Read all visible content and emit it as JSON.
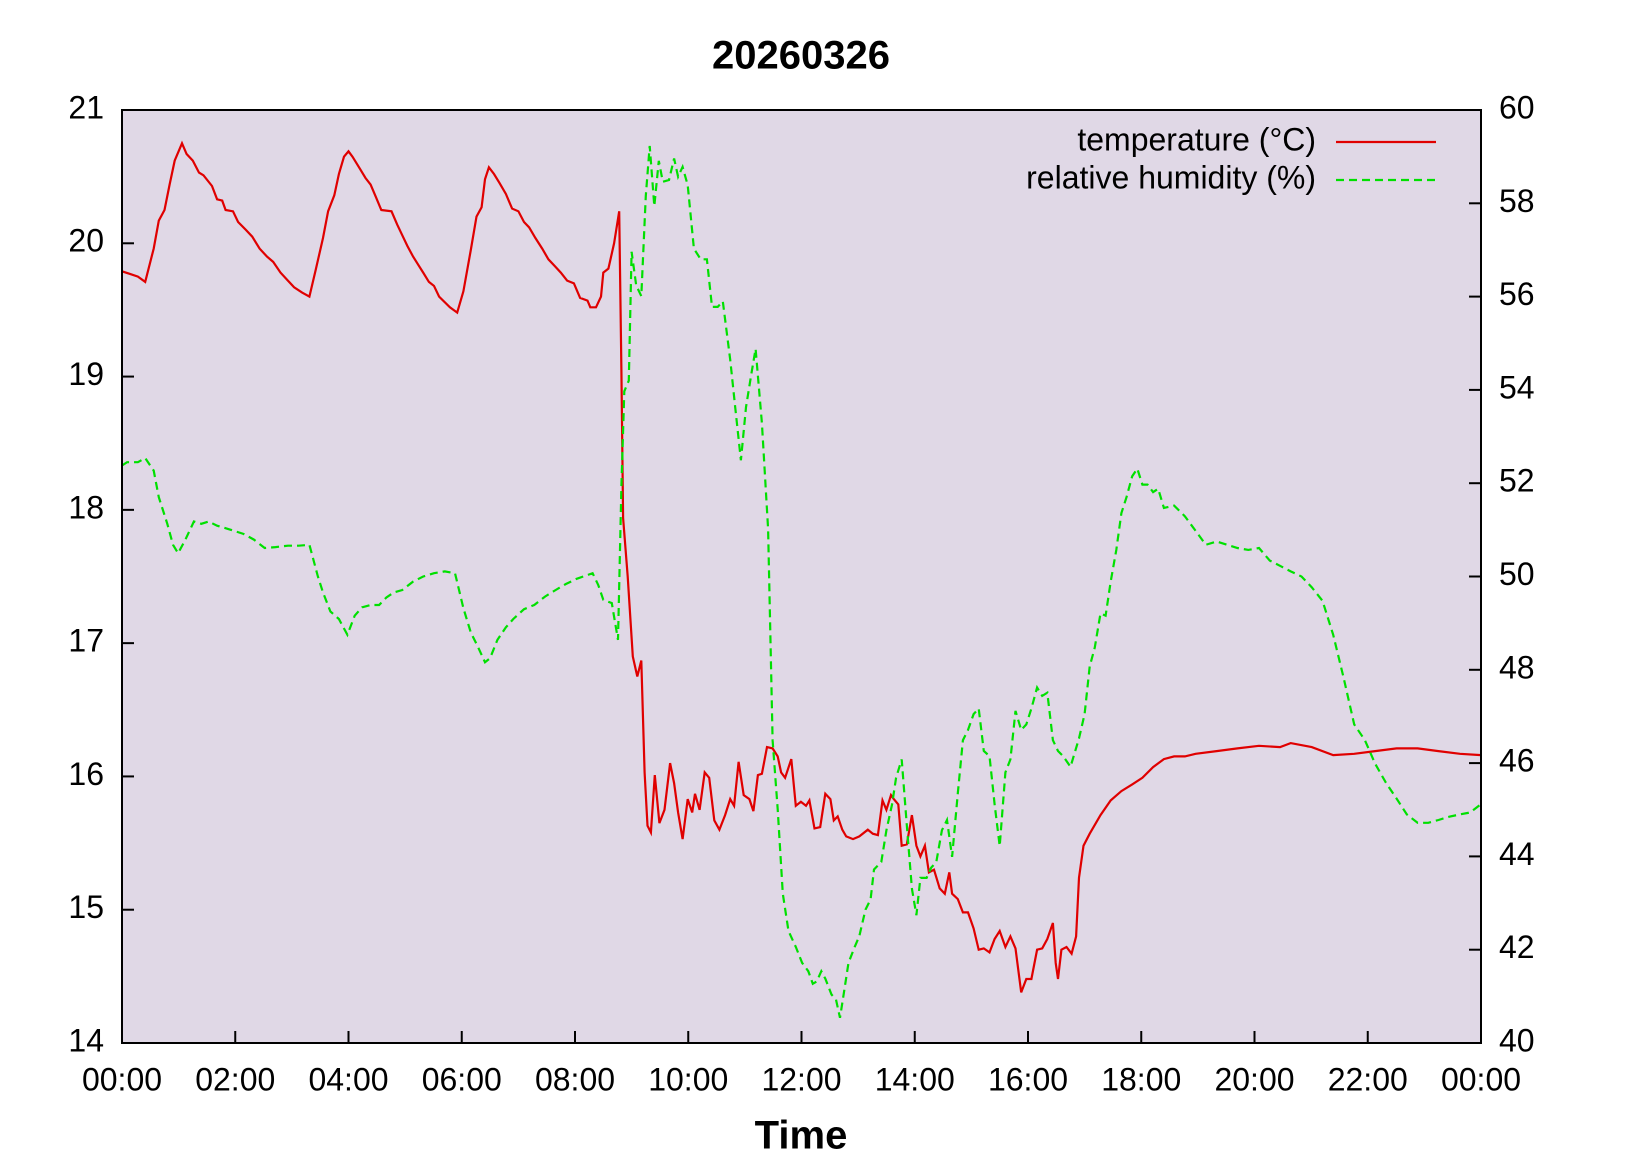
{
  "chart_data": {
    "type": "line",
    "title": "20260326",
    "xlabel": "Time",
    "xlim": [
      0,
      24
    ],
    "xticks": [
      {
        "value": 0,
        "label": "00:00"
      },
      {
        "value": 2,
        "label": "02:00"
      },
      {
        "value": 4,
        "label": "04:00"
      },
      {
        "value": 6,
        "label": "06:00"
      },
      {
        "value": 8,
        "label": "08:00"
      },
      {
        "value": 10,
        "label": "10:00"
      },
      {
        "value": 12,
        "label": "12:00"
      },
      {
        "value": 14,
        "label": "14:00"
      },
      {
        "value": 16,
        "label": "16:00"
      },
      {
        "value": 18,
        "label": "18:00"
      },
      {
        "value": 20,
        "label": "20:00"
      },
      {
        "value": 22,
        "label": "22:00"
      },
      {
        "value": 24,
        "label": "00:00"
      }
    ],
    "ylim": [
      14,
      21
    ],
    "yticks": [
      14,
      15,
      16,
      17,
      18,
      19,
      20,
      21
    ],
    "y2lim": [
      40,
      60
    ],
    "y2ticks": [
      40,
      42,
      44,
      46,
      48,
      50,
      52,
      54,
      56,
      58,
      60
    ],
    "legend": "top-right",
    "background": "#e0d8e6",
    "series": [
      {
        "name": "temperature (°C)",
        "color": "#e00000",
        "style": "solid",
        "x": [
          0,
          0.28,
          0.41,
          0.56,
          0.65,
          0.75,
          0.84,
          0.93,
          1.06,
          1.14,
          1.25,
          1.36,
          1.44,
          1.59,
          1.68,
          1.77,
          1.83,
          1.96,
          2.05,
          2.19,
          2.3,
          2.43,
          2.56,
          2.67,
          2.8,
          2.93,
          3.04,
          3.18,
          3.31,
          3.42,
          3.55,
          3.64,
          3.75,
          3.83,
          3.92,
          4,
          4.07,
          4.2,
          4.3,
          4.39,
          4.48,
          4.58,
          4.76,
          4.86,
          4.95,
          5.04,
          5.14,
          5.23,
          5.32,
          5.42,
          5.51,
          5.6,
          5.79,
          5.92,
          6.03,
          6.16,
          6.26,
          6.35,
          6.41,
          6.48,
          6.57,
          6.67,
          6.78,
          6.89,
          7,
          7.1,
          7.19,
          7.3,
          7.42,
          7.53,
          7.64,
          7.75,
          7.86,
          7.98,
          8.09,
          8.22,
          8.27,
          8.37,
          8.46,
          8.5,
          8.59,
          8.69,
          8.78,
          8.82,
          8.85,
          8.93,
          9.02,
          9.1,
          9.17,
          9.23,
          9.28,
          9.34,
          9.41,
          9.49,
          9.58,
          9.68,
          9.75,
          9.82,
          9.9,
          9.99,
          10.07,
          10.12,
          10.2,
          10.29,
          10.37,
          10.46,
          10.55,
          10.65,
          10.74,
          10.81,
          10.89,
          10.98,
          11.08,
          11.15,
          11.23,
          11.3,
          11.39,
          11.49,
          11.58,
          11.64,
          11.71,
          11.82,
          11.9,
          11.99,
          12.08,
          12.14,
          12.23,
          12.33,
          12.42,
          12.51,
          12.57,
          12.64,
          12.72,
          12.79,
          12.91,
          13.02,
          13.17,
          13.26,
          13.35,
          13.43,
          13.5,
          13.58,
          13.63,
          13.71,
          13.77,
          13.86,
          13.95,
          14.03,
          14.1,
          14.18,
          14.25,
          14.34,
          14.44,
          14.53,
          14.61,
          14.66,
          14.76,
          14.85,
          14.94,
          15.04,
          15.13,
          15.22,
          15.32,
          15.41,
          15.5,
          15.6,
          15.69,
          15.78,
          15.88,
          15.97,
          16.06,
          16.16,
          16.25,
          16.34,
          16.44,
          16.49,
          16.53,
          16.59,
          16.68,
          16.77,
          16.85,
          16.9,
          16.98,
          17.09,
          17.28,
          17.46,
          17.65,
          17.84,
          18.02,
          18.21,
          18.4,
          18.58,
          18.77,
          18.96,
          19.33,
          19.7,
          20.08,
          20.45,
          20.64,
          21.01,
          21.39,
          21.76,
          22.13,
          22.51,
          22.88,
          23.25,
          23.63,
          24
        ],
        "values": [
          19.79,
          19.75,
          19.71,
          19.96,
          20.17,
          20.25,
          20.44,
          20.62,
          20.75,
          20.67,
          20.62,
          20.53,
          20.51,
          20.43,
          20.33,
          20.32,
          20.25,
          20.24,
          20.16,
          20.1,
          20.05,
          19.96,
          19.9,
          19.86,
          19.78,
          19.72,
          19.67,
          19.63,
          19.6,
          19.8,
          20.04,
          20.24,
          20.36,
          20.52,
          20.65,
          20.69,
          20.65,
          20.56,
          20.49,
          20.44,
          20.35,
          20.25,
          20.24,
          20.14,
          20.06,
          19.98,
          19.9,
          19.84,
          19.78,
          19.71,
          19.68,
          19.6,
          19.52,
          19.48,
          19.64,
          19.95,
          20.2,
          20.27,
          20.48,
          20.57,
          20.52,
          20.45,
          20.37,
          20.26,
          20.24,
          20.16,
          20.12,
          20.04,
          19.96,
          19.88,
          19.83,
          19.78,
          19.72,
          19.7,
          19.59,
          19.57,
          19.52,
          19.52,
          19.6,
          19.78,
          19.81,
          20,
          20.24,
          19.05,
          17.94,
          17.5,
          16.9,
          16.75,
          16.87,
          16.03,
          15.63,
          15.58,
          16.01,
          15.65,
          15.75,
          16.1,
          15.95,
          15.73,
          15.53,
          15.83,
          15.73,
          15.87,
          15.75,
          16.03,
          15.99,
          15.67,
          15.6,
          15.71,
          15.83,
          15.78,
          16.11,
          15.86,
          15.83,
          15.74,
          16.01,
          16.02,
          16.22,
          16.21,
          16.15,
          16.03,
          15.99,
          16.13,
          15.78,
          15.81,
          15.78,
          15.82,
          15.61,
          15.62,
          15.87,
          15.83,
          15.67,
          15.7,
          15.6,
          15.55,
          15.53,
          15.55,
          15.6,
          15.57,
          15.56,
          15.82,
          15.75,
          15.86,
          15.83,
          15.79,
          15.48,
          15.49,
          15.71,
          15.48,
          15.4,
          15.48,
          15.28,
          15.3,
          15.16,
          15.12,
          15.28,
          15.12,
          15.08,
          14.98,
          14.98,
          14.86,
          14.7,
          14.71,
          14.68,
          14.78,
          14.84,
          14.72,
          14.8,
          14.71,
          14.38,
          14.48,
          14.48,
          14.7,
          14.71,
          14.78,
          14.9,
          14.6,
          14.48,
          14.7,
          14.72,
          14.67,
          14.8,
          15.24,
          15.48,
          15.57,
          15.71,
          15.82,
          15.89,
          15.94,
          15.99,
          16.07,
          16.13,
          16.15,
          16.15,
          16.17,
          16.19,
          16.21,
          16.23,
          16.22,
          16.25,
          16.22,
          16.16,
          16.17,
          16.19,
          16.21,
          16.21,
          16.19,
          16.17,
          16.16
        ]
      },
      {
        "name": "relative humidity (%)",
        "color": "#00e000",
        "style": "dashed",
        "axis": "y2",
        "x": [
          0,
          0.09,
          0.28,
          0.41,
          0.56,
          0.65,
          0.8,
          0.9,
          0.99,
          1.12,
          1.27,
          1.4,
          1.53,
          1.68,
          1.87,
          2.15,
          2.33,
          2.52,
          2.71,
          2.93,
          3.12,
          3.31,
          3.46,
          3.55,
          3.68,
          3.83,
          3.98,
          4.11,
          4.24,
          4.39,
          4.54,
          4.67,
          4.8,
          4.95,
          5.14,
          5.32,
          5.51,
          5.7,
          5.88,
          6.03,
          6.16,
          6.29,
          6.41,
          6.5,
          6.63,
          6.78,
          6.91,
          7.1,
          7.28,
          7.47,
          7.66,
          7.84,
          8.03,
          8.31,
          8.41,
          8.5,
          8.65,
          8.76,
          8.82,
          8.87,
          8.95,
          9,
          9.08,
          9.17,
          9.25,
          9.32,
          9.4,
          9.48,
          9.55,
          9.66,
          9.75,
          9.82,
          9.9,
          9.99,
          10.1,
          10.22,
          10.33,
          10.42,
          10.52,
          10.61,
          10.74,
          10.83,
          10.93,
          11.02,
          11.11,
          11.19,
          11.3,
          11.41,
          11.49,
          11.58,
          11.67,
          11.77,
          11.9,
          12.01,
          12.12,
          12.2,
          12.27,
          12.35,
          12.42,
          12.53,
          12.61,
          12.68,
          12.76,
          12.83,
          12.94,
          13.02,
          13.13,
          13.22,
          13.28,
          13.41,
          13.5,
          13.6,
          13.67,
          13.77,
          13.86,
          13.95,
          14.03,
          14.1,
          14.21,
          14.29,
          14.38,
          14.48,
          14.57,
          14.66,
          14.76,
          14.85,
          14.94,
          15.04,
          15.13,
          15.22,
          15.32,
          15.41,
          15.5,
          15.6,
          15.69,
          15.78,
          15.88,
          15.97,
          16.06,
          16.16,
          16.25,
          16.34,
          16.44,
          16.53,
          16.62,
          16.75,
          16.9,
          17,
          17.09,
          17.18,
          17.28,
          17.37,
          17.46,
          17.56,
          17.65,
          17.74,
          17.84,
          17.93,
          18.02,
          18.11,
          18.21,
          18.3,
          18.4,
          18.58,
          18.77,
          18.96,
          19.14,
          19.33,
          19.52,
          19.7,
          19.89,
          20.08,
          20.27,
          20.45,
          20.64,
          20.83,
          21.01,
          21.2,
          21.39,
          21.57,
          21.76,
          21.95,
          22.13,
          22.32,
          22.51,
          22.69,
          22.88,
          23.07,
          23.25,
          23.44,
          23.63,
          23.81,
          24
        ],
        "values": [
          52.38,
          52.45,
          52.45,
          52.54,
          52.27,
          51.7,
          51.13,
          50.68,
          50.5,
          50.79,
          51.18,
          51.13,
          51.18,
          51.09,
          51.02,
          50.91,
          50.79,
          50.61,
          50.63,
          50.66,
          50.66,
          50.68,
          50,
          49.66,
          49.25,
          49.09,
          48.75,
          49.16,
          49.34,
          49.39,
          49.39,
          49.55,
          49.66,
          49.71,
          49.89,
          50,
          50.07,
          50.11,
          50.07,
          49.32,
          48.8,
          48.48,
          48.16,
          48.25,
          48.64,
          48.91,
          49.09,
          49.3,
          49.39,
          49.57,
          49.71,
          49.84,
          49.95,
          50.07,
          49.82,
          49.5,
          49.43,
          48.64,
          51.93,
          53.97,
          54.2,
          56.96,
          56.24,
          56.01,
          58.16,
          59.23,
          57.94,
          58.91,
          58.46,
          58.5,
          58.96,
          58.57,
          58.78,
          58.39,
          57.03,
          56.8,
          56.8,
          55.78,
          55.78,
          55.9,
          54.65,
          53.63,
          52.49,
          53.63,
          54.31,
          54.88,
          53.29,
          51.02,
          46.49,
          45.01,
          43.2,
          42.4,
          42.06,
          41.72,
          41.54,
          41.27,
          41.32,
          41.54,
          41.38,
          41.04,
          40.93,
          40.54,
          41.16,
          41.72,
          42.06,
          42.29,
          42.86,
          43.08,
          43.72,
          43.88,
          44.56,
          45.12,
          45.69,
          46.08,
          44.67,
          43.31,
          42.74,
          43.54,
          43.54,
          43.76,
          43.88,
          44.56,
          44.78,
          43.99,
          45.35,
          46.49,
          46.71,
          47.05,
          47.17,
          46.26,
          46.15,
          45.12,
          44.22,
          45.8,
          46.08,
          47.12,
          46.71,
          46.83,
          47.17,
          47.62,
          47.44,
          47.51,
          46.49,
          46.26,
          46.15,
          45.92,
          46.53,
          47.05,
          48.07,
          48.48,
          49.21,
          49.16,
          49.89,
          50.57,
          51.36,
          51.7,
          52.15,
          52.31,
          51.97,
          51.97,
          51.81,
          51.88,
          51.47,
          51.52,
          51.29,
          50.98,
          50.68,
          50.75,
          50.68,
          50.61,
          50.57,
          50.61,
          50.34,
          50.23,
          50.11,
          50,
          49.77,
          49.48,
          48.75,
          47.85,
          46.83,
          46.49,
          45.99,
          45.58,
          45.24,
          44.9,
          44.72,
          44.72,
          44.78,
          44.85,
          44.9,
          44.94,
          45.12
        ]
      }
    ]
  }
}
